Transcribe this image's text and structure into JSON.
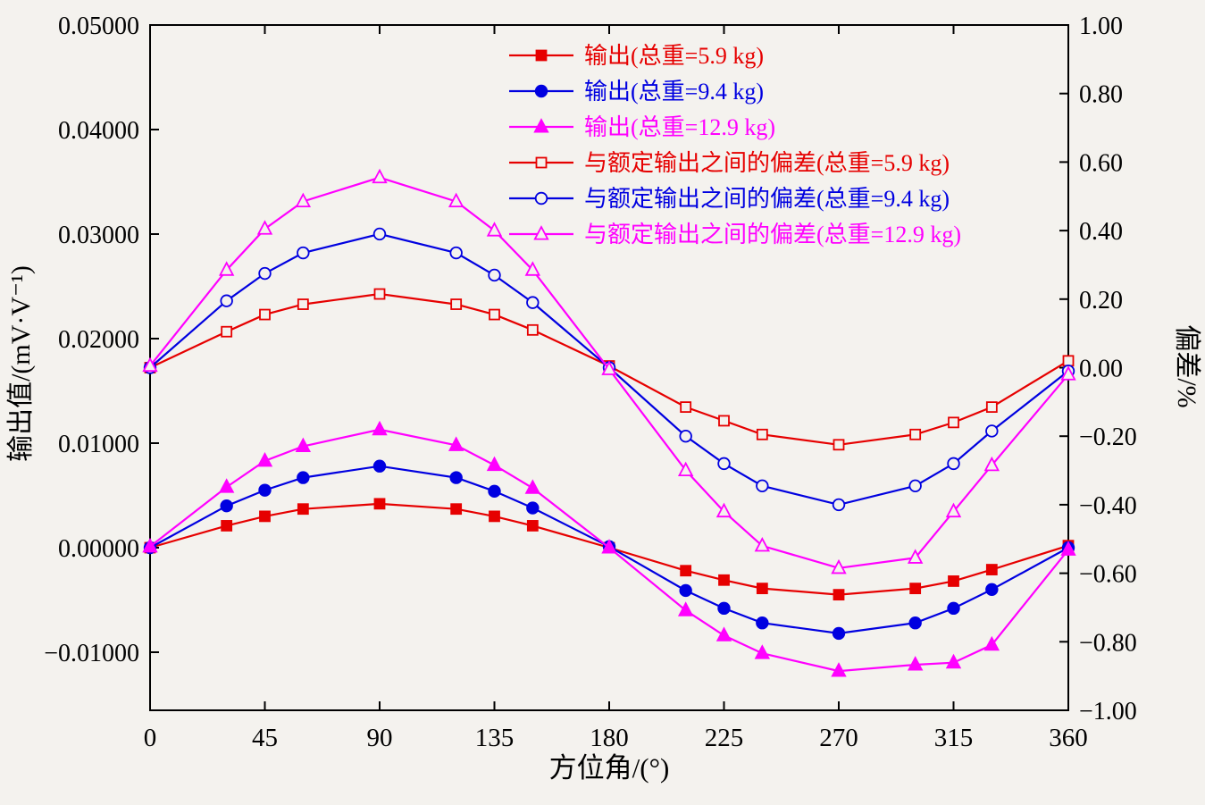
{
  "page": {
    "background": "#f4f2ee",
    "frame_color": "#000000"
  },
  "chart_data": {
    "type": "line",
    "title": "",
    "xlabel": "方位角/(°)",
    "ylabel_left": "输出值/(mV·V⁻¹)",
    "ylabel_right": "偏差/%",
    "x_range": [
      0,
      360
    ],
    "x": [
      0,
      30,
      45,
      60,
      90,
      120,
      135,
      150,
      180,
      210,
      225,
      240,
      270,
      300,
      315,
      330,
      360
    ],
    "x_ticks": [
      0,
      45,
      90,
      135,
      180,
      225,
      270,
      315,
      360
    ],
    "x_tick_labels": [
      "0",
      "45",
      "90",
      "135",
      "180",
      "225",
      "270",
      "315",
      "360"
    ],
    "left_axis": {
      "min": -0.015556,
      "max": 0.05,
      "ticks": [
        0.05,
        0.04,
        0.03,
        0.02,
        0.01,
        0,
        -0.01
      ],
      "tick_labels": [
        "0.05000",
        "0.04000",
        "0.03000",
        "0.02000",
        "0.01000",
        "0.00000",
        "−0.01000"
      ]
    },
    "right_axis": {
      "min": -1.0,
      "max": 1.0,
      "ticks": [
        1,
        0.8,
        0.6,
        0.4,
        0.2,
        0,
        -0.2,
        -0.4,
        -0.6,
        -0.8,
        -1
      ],
      "tick_labels": [
        "1.00",
        "0.80",
        "0.60",
        "0.40",
        "0.20",
        "0.00",
        "−0.20",
        "−0.40",
        "−0.60",
        "−0.80",
        "−1.00"
      ]
    },
    "legend": {
      "position": "top-center-inside",
      "border": "none"
    },
    "series": [
      {
        "name": "输出(总重=5.9 kg)",
        "axis": "left",
        "color": "#e60000",
        "marker": "square",
        "fill": "solid",
        "values": [
          0.0,
          0.0021,
          0.003,
          0.0037,
          0.0042,
          0.0037,
          0.003,
          0.0021,
          0.0,
          -0.0022,
          -0.0031,
          -0.0039,
          -0.0045,
          -0.0039,
          -0.0032,
          -0.0021,
          0.0002
        ]
      },
      {
        "name": "输出(总重=9.4 kg)",
        "axis": "left",
        "color": "#0000e0",
        "marker": "circle",
        "fill": "solid",
        "values": [
          0.0,
          0.004,
          0.0055,
          0.0067,
          0.0078,
          0.0067,
          0.0054,
          0.0038,
          0.0001,
          -0.0041,
          -0.0058,
          -0.0072,
          -0.0082,
          -0.0072,
          -0.0058,
          -0.004,
          0.0
        ]
      },
      {
        "name": "输出(总重=12.9 kg)",
        "axis": "left",
        "color": "#ff00ff",
        "marker": "triangle",
        "fill": "solid",
        "values": [
          0.0001,
          0.0058,
          0.0083,
          0.0097,
          0.0113,
          0.0098,
          0.0079,
          0.0057,
          0.0,
          -0.006,
          -0.0084,
          -0.0101,
          -0.0118,
          -0.0112,
          -0.011,
          -0.0093,
          -0.0002
        ]
      },
      {
        "name": "与额定输出之间的偏差(总重=5.9 kg)",
        "axis": "right",
        "color": "#e60000",
        "marker": "square",
        "fill": "open",
        "values": [
          0.0,
          0.105,
          0.155,
          0.185,
          0.215,
          0.185,
          0.155,
          0.11,
          0.005,
          -0.115,
          -0.155,
          -0.195,
          -0.225,
          -0.195,
          -0.16,
          -0.115,
          0.02
        ]
      },
      {
        "name": "与额定输出之间的偏差(总重=9.4 kg)",
        "axis": "right",
        "color": "#0000e0",
        "marker": "circle",
        "fill": "open",
        "values": [
          0.0,
          0.195,
          0.275,
          0.335,
          0.39,
          0.335,
          0.27,
          0.19,
          0.0,
          -0.2,
          -0.28,
          -0.345,
          -0.4,
          -0.345,
          -0.28,
          -0.185,
          -0.01
        ]
      },
      {
        "name": "与额定输出之间的偏差(总重=12.9 kg)",
        "axis": "right",
        "color": "#ff00ff",
        "marker": "triangle",
        "fill": "open",
        "values": [
          0.005,
          0.285,
          0.405,
          0.485,
          0.555,
          0.485,
          0.4,
          0.285,
          -0.005,
          -0.3,
          -0.42,
          -0.52,
          -0.585,
          -0.555,
          -0.42,
          -0.285,
          -0.02
        ]
      }
    ]
  }
}
